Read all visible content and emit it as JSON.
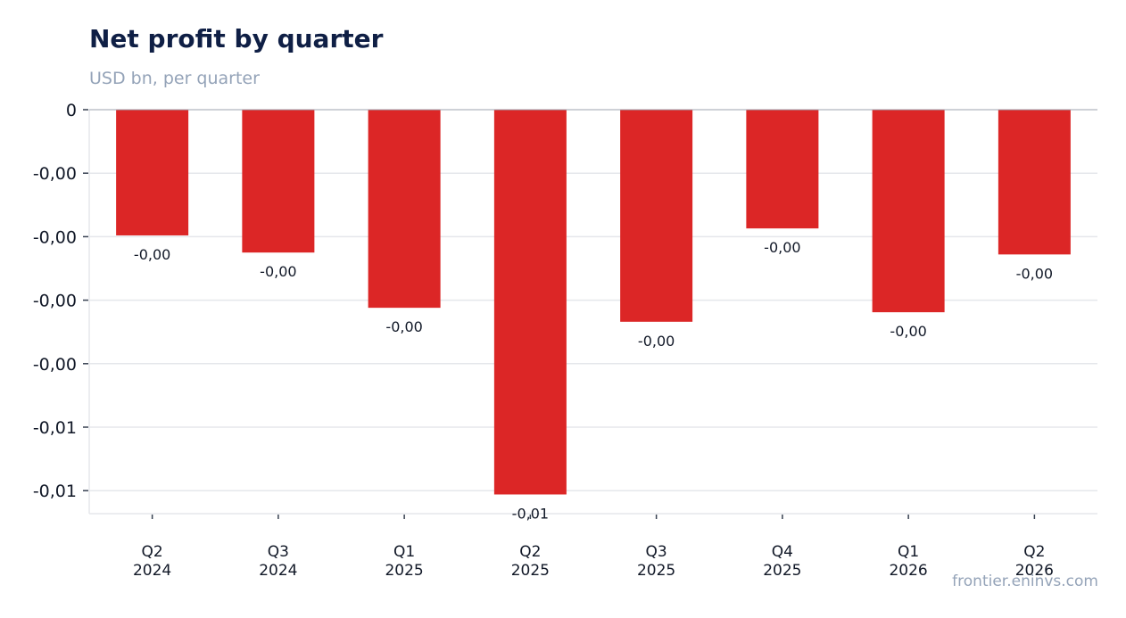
{
  "header": {
    "title": "Net profit by quarter",
    "subtitle": "USD bn, per quarter"
  },
  "footer": {
    "source": "frontier.eninvs.com"
  },
  "colors": {
    "bar": "#dc2626",
    "title": "#0f1f45",
    "muted": "#94a3b8",
    "grid": "#e5e7eb"
  },
  "chart_data": {
    "type": "bar",
    "title": "Net profit by quarter",
    "subtitle": "USD bn, per quarter",
    "xlabel": "",
    "ylabel": "",
    "categories": [
      [
        "Q2",
        "2024"
      ],
      [
        "Q3",
        "2024"
      ],
      [
        "Q1",
        "2025"
      ],
      [
        "Q2",
        "2025"
      ],
      [
        "Q3",
        "2025"
      ],
      [
        "Q4",
        "2025"
      ],
      [
        "Q1",
        "2026"
      ],
      [
        "Q2",
        "2026"
      ]
    ],
    "values": [
      -0.00198,
      -0.00225,
      -0.00312,
      -0.00606,
      -0.00334,
      -0.00187,
      -0.00319,
      -0.00228
    ],
    "data_labels": [
      "-0,00",
      "-0,00",
      "-0,00",
      "-0,01",
      "-0,00",
      "-0,00",
      "-0,00",
      "-0,00"
    ],
    "y_ticks": [
      0,
      -0.001,
      -0.002,
      -0.003,
      -0.004,
      -0.005,
      -0.006
    ],
    "y_tick_labels": [
      "0",
      "-0,00",
      "-0,00",
      "-0,00",
      "-0,00",
      "-0,01",
      "-0,01"
    ],
    "ylim": [
      -0.00637,
      0
    ],
    "grid": true,
    "legend": "none"
  }
}
